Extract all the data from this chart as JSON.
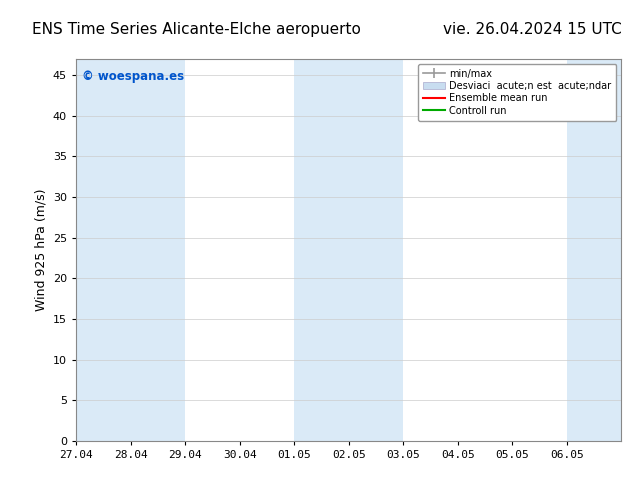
{
  "title_left": "ENS Time Series Alicante-Elche aeropuerto",
  "title_right": "vie. 26.04.2024 15 UTC",
  "ylabel": "Wind 925 hPa (m/s)",
  "watermark": "© woespana.es",
  "ylim": [
    0,
    47
  ],
  "yticks": [
    0,
    5,
    10,
    15,
    20,
    25,
    30,
    35,
    40,
    45
  ],
  "xtick_labels": [
    "27.04",
    "28.04",
    "29.04",
    "30.04",
    "01.05",
    "02.05",
    "03.05",
    "04.05",
    "05.05",
    "06.05"
  ],
  "num_days": 10,
  "shaded_day_indices": [
    0,
    1,
    4,
    5,
    9
  ],
  "background_color": "#ffffff",
  "shaded_band_color": "#daeaf7",
  "legend_labels": [
    "min/max",
    "Desviaci  acute;n est  acute;ndar",
    "Ensemble mean run",
    "Controll run"
  ],
  "legend_colors": [
    "#999999",
    "#c8ddf0",
    "#ff0000",
    "#00aa00"
  ],
  "title_fontsize": 11,
  "axis_label_fontsize": 9,
  "tick_fontsize": 8,
  "watermark_color": "#0055cc",
  "grid_color": "#cccccc",
  "spine_color": "#888888"
}
